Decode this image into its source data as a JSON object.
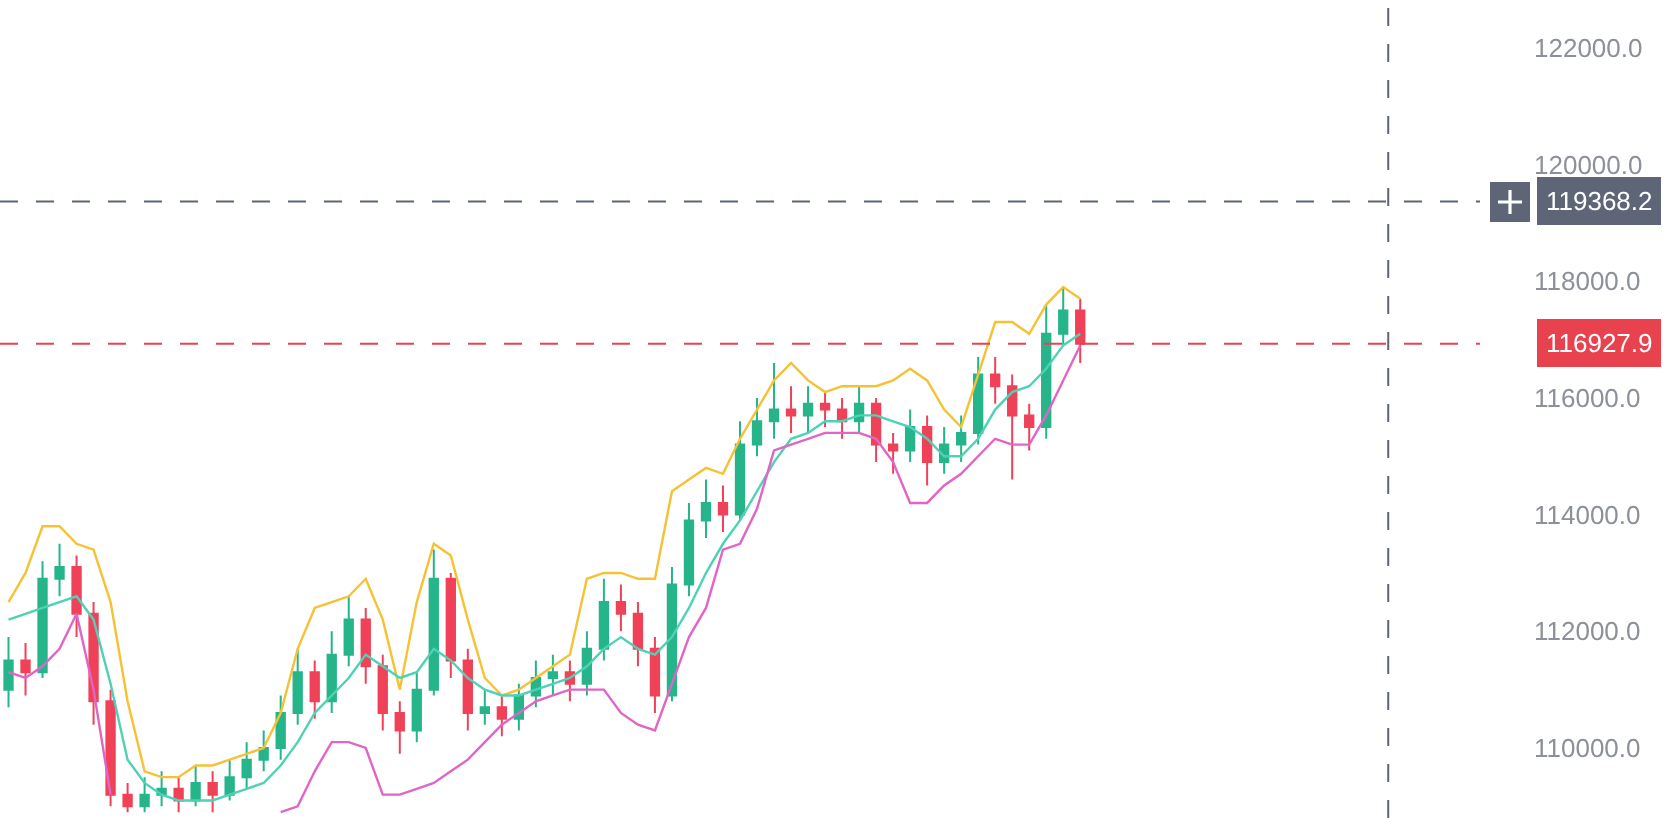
{
  "chart_data": {
    "type": "candlestick",
    "categories": [
      null,
      null,
      null,
      null,
      null,
      null,
      null,
      null,
      null,
      null,
      null,
      null,
      null,
      null,
      null,
      null,
      null,
      null,
      null,
      null,
      null,
      null,
      null,
      null,
      null,
      null,
      null,
      null,
      null,
      null,
      null,
      null,
      null,
      null,
      null,
      null,
      null,
      null,
      null,
      null,
      null,
      null,
      null,
      null,
      null,
      null,
      null,
      null,
      null,
      null,
      null,
      null,
      null,
      null,
      null,
      null,
      null,
      null,
      null,
      null,
      null,
      null,
      null,
      null,
      null,
      null,
      null,
      null,
      null,
      null,
      null,
      null,
      null,
      null,
      null,
      null,
      null,
      null,
      null,
      null,
      null,
      null,
      null,
      null,
      null,
      null,
      null
    ],
    "ohlc": [
      [
        111000,
        111900,
        110700,
        111500
      ],
      [
        111500,
        111800,
        110900,
        111300
      ],
      [
        111300,
        113200,
        111200,
        112900
      ],
      [
        112900,
        113500,
        112600,
        113100
      ],
      [
        113100,
        113300,
        111900,
        112300
      ],
      [
        112300,
        112500,
        110400,
        110800
      ],
      [
        110800,
        111000,
        109000,
        109200
      ],
      [
        109200,
        109400,
        108900,
        109000
      ],
      [
        109000,
        109500,
        108900,
        109200
      ],
      [
        109200,
        109600,
        109000,
        109300
      ],
      [
        109300,
        109500,
        108900,
        109100
      ],
      [
        109100,
        109700,
        109000,
        109400
      ],
      [
        109400,
        109600,
        108900,
        109200
      ],
      [
        109200,
        109800,
        109100,
        109500
      ],
      [
        109500,
        110100,
        109300,
        109800
      ],
      [
        109800,
        110300,
        109600,
        110000
      ],
      [
        110000,
        110900,
        109800,
        110600
      ],
      [
        110600,
        111700,
        110400,
        111300
      ],
      [
        111300,
        111500,
        110500,
        110800
      ],
      [
        110800,
        112000,
        110600,
        111600
      ],
      [
        111600,
        112600,
        111400,
        112200
      ],
      [
        112200,
        112400,
        111100,
        111400
      ],
      [
        111400,
        111600,
        110300,
        110600
      ],
      [
        110600,
        110800,
        109900,
        110300
      ],
      [
        110300,
        111300,
        110100,
        111000
      ],
      [
        111000,
        113400,
        110900,
        112900
      ],
      [
        112900,
        113000,
        111200,
        111500
      ],
      [
        111500,
        111700,
        110300,
        110600
      ],
      [
        110600,
        111000,
        110400,
        110700
      ],
      [
        110700,
        110900,
        110200,
        110500
      ],
      [
        110500,
        111100,
        110300,
        110900
      ],
      [
        110900,
        111500,
        110700,
        111200
      ],
      [
        111200,
        111600,
        110900,
        111300
      ],
      [
        111300,
        111500,
        110800,
        111100
      ],
      [
        111100,
        112000,
        110900,
        111700
      ],
      [
        111700,
        112900,
        111500,
        112500
      ],
      [
        112500,
        112800,
        112000,
        112300
      ],
      [
        112300,
        112500,
        111400,
        111700
      ],
      [
        111700,
        111900,
        110600,
        110900
      ],
      [
        110900,
        113100,
        110800,
        112800
      ],
      [
        112800,
        114200,
        112600,
        113900
      ],
      [
        113900,
        114600,
        113600,
        114200
      ],
      [
        114200,
        114500,
        113700,
        114000
      ],
      [
        114000,
        115600,
        113900,
        115200
      ],
      [
        115200,
        116000,
        115000,
        115600
      ],
      [
        115600,
        116600,
        115300,
        115800
      ],
      [
        115800,
        116200,
        115400,
        115700
      ],
      [
        115700,
        116200,
        115400,
        115900
      ],
      [
        115900,
        116100,
        115500,
        115800
      ],
      [
        115800,
        116000,
        115300,
        115600
      ],
      [
        115600,
        116200,
        115400,
        115900
      ],
      [
        115900,
        116000,
        114900,
        115200
      ],
      [
        115200,
        115400,
        114700,
        115100
      ],
      [
        115100,
        115800,
        114900,
        115500
      ],
      [
        115500,
        115700,
        114500,
        114900
      ],
      [
        114900,
        115500,
        114700,
        115200
      ],
      [
        115200,
        115700,
        114900,
        115400
      ],
      [
        115400,
        116700,
        115200,
        116400
      ],
      [
        116400,
        116700,
        115900,
        116200
      ],
      [
        116200,
        116400,
        114600,
        115700
      ],
      [
        115700,
        115900,
        115100,
        115500
      ],
      [
        115500,
        117600,
        115300,
        117100
      ],
      [
        117100,
        117900,
        116900,
        117500
      ],
      [
        117500,
        117700,
        116600,
        116927.9
      ],
      null,
      null,
      null,
      null,
      null,
      null,
      null,
      null,
      null,
      null,
      null,
      null,
      null,
      null,
      null,
      null,
      null,
      null,
      null,
      null,
      null,
      null,
      null
    ],
    "series": [
      {
        "type": "line",
        "color": "#f5c233",
        "values": [
          112500,
          113000,
          113800,
          113800,
          113500,
          113400,
          112500,
          110800,
          109600,
          109500,
          109500,
          109700,
          109700,
          109800,
          109900,
          110000,
          110600,
          111700,
          112400,
          112500,
          112600,
          112900,
          112200,
          111000,
          112500,
          113500,
          113300,
          112200,
          111200,
          110900,
          111000,
          111200,
          111400,
          111600,
          112900,
          113000,
          113000,
          112900,
          112900,
          114400,
          114600,
          114800,
          114700,
          115300,
          115800,
          116300,
          116600,
          116300,
          116100,
          116200,
          116200,
          116200,
          116300,
          116500,
          116300,
          115800,
          115500,
          116400,
          117300,
          117300,
          117100,
          117600,
          117900,
          117700,
          null,
          null,
          null,
          null,
          null,
          null,
          null,
          null,
          null,
          null,
          null,
          null,
          null,
          null,
          null,
          null,
          null,
          null,
          null,
          null,
          null,
          null,
          null
        ]
      },
      {
        "type": "line",
        "color": "#4fd1b5",
        "values": [
          112200,
          112300,
          112400,
          112500,
          112600,
          112200,
          111100,
          109800,
          109400,
          109200,
          109100,
          109100,
          109100,
          109200,
          109300,
          109400,
          109700,
          110100,
          110600,
          110900,
          111200,
          111600,
          111400,
          111200,
          111300,
          111700,
          111500,
          111200,
          111000,
          110900,
          110900,
          111000,
          111100,
          111200,
          111400,
          111700,
          111900,
          111700,
          111600,
          111900,
          112400,
          113000,
          113500,
          113900,
          114400,
          114900,
          115300,
          115400,
          115600,
          115600,
          115700,
          115700,
          115600,
          115500,
          115300,
          115000,
          115000,
          115300,
          115800,
          116100,
          116200,
          116500,
          116900,
          117100,
          null,
          null,
          null,
          null,
          null,
          null,
          null,
          null,
          null,
          null,
          null,
          null,
          null,
          null,
          null,
          null,
          null,
          null,
          null,
          null,
          null,
          null,
          null
        ]
      },
      {
        "type": "line",
        "color": "#df65c6",
        "values": [
          111300,
          111200,
          111400,
          111700,
          112300,
          111000,
          109200,
          null,
          null,
          null,
          null,
          null,
          null,
          null,
          null,
          null,
          108900,
          109000,
          109600,
          110100,
          110100,
          110000,
          109200,
          109200,
          109300,
          109400,
          109600,
          109800,
          110100,
          110400,
          110600,
          110800,
          110900,
          111000,
          111000,
          111000,
          110600,
          110400,
          110300,
          111100,
          111900,
          112400,
          113400,
          113500,
          114100,
          115100,
          115200,
          115300,
          115400,
          115400,
          115400,
          115300,
          114900,
          114200,
          114200,
          114500,
          114700,
          115000,
          115300,
          115200,
          115200,
          115700,
          116300,
          116900,
          null,
          null,
          null,
          null,
          null,
          null,
          null,
          null,
          null,
          null,
          null,
          null,
          null,
          null,
          null,
          null,
          null,
          null,
          null,
          null,
          null,
          null,
          null
        ]
      }
    ],
    "ylim": [
      108800,
      122820
    ],
    "yticks": [
      {
        "value": 110000,
        "label": "110000.0"
      },
      {
        "value": 112000,
        "label": "112000.0"
      },
      {
        "value": 114000,
        "label": "114000.0"
      },
      {
        "value": 116000,
        "label": "116000.0"
      },
      {
        "value": 118000,
        "label": "118000.0"
      },
      {
        "value": 120000,
        "label": "120000.0"
      },
      {
        "value": 122000,
        "label": "122000.0"
      }
    ],
    "ref_lines": [
      {
        "axis": "y",
        "value": 119368.2,
        "label": "119368.2",
        "color": "#5d6577",
        "line_style": "dashed"
      },
      {
        "axis": "y",
        "value": 116927.9,
        "label": "116927.9",
        "color": "#e8424f",
        "line_style": "dashed"
      }
    ],
    "tick_labels": "y",
    "grid": false
  }
}
